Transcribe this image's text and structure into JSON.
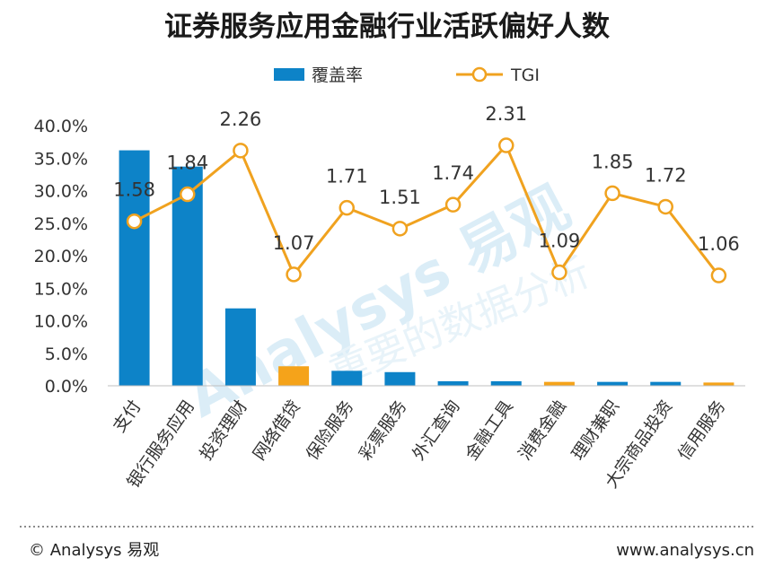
{
  "chart_data": {
    "type": "bar",
    "title": "证券服务应用金融行业活跃偏好人数",
    "categories": [
      "支付",
      "银行服务应用",
      "投资理财",
      "网络借贷",
      "保险服务",
      "彩票服务",
      "外汇查询",
      "金融工具",
      "消费金融",
      "理财兼职",
      "大宗商品投资",
      "信用服务"
    ],
    "series": [
      {
        "name": "覆盖率",
        "type": "bar",
        "values": [
          0.362,
          0.337,
          0.119,
          0.03,
          0.023,
          0.021,
          0.007,
          0.007,
          0.006,
          0.006,
          0.006,
          0.005
        ],
        "colors": [
          "#0d83c8",
          "#0d83c8",
          "#0d83c8",
          "#f5a31a",
          "#0d83c8",
          "#0d83c8",
          "#0d83c8",
          "#0d83c8",
          "#f5a31a",
          "#0d83c8",
          "#0d83c8",
          "#f5a31a"
        ]
      },
      {
        "name": "TGI",
        "type": "line",
        "values": [
          1.58,
          1.84,
          2.26,
          1.07,
          1.71,
          1.51,
          1.74,
          2.31,
          1.09,
          1.85,
          1.72,
          1.06
        ],
        "labels": [
          "1.58",
          "1.84",
          "2.26",
          "1.07",
          "1.71",
          "1.51",
          "1.74",
          "2.31",
          "1.09",
          "1.85",
          "1.72",
          "1.06"
        ],
        "color": "#f0a21f"
      }
    ],
    "y_axis": {
      "ylim": [
        0,
        0.4
      ],
      "ticks": [
        0,
        0.05,
        0.1,
        0.15,
        0.2,
        0.25,
        0.3,
        0.35,
        0.4
      ],
      "tick_labels": [
        "0.0%",
        "5.0%",
        "10.0%",
        "15.0%",
        "20.0%",
        "25.0%",
        "30.0%",
        "35.0%",
        "40.0%"
      ]
    },
    "tgi_axis": {
      "ylim": [
        0,
        2.5
      ]
    },
    "legend_position": "top-center",
    "grid": false
  },
  "colors": {
    "blue": "#0d83c8",
    "orange": "#f5a31a",
    "line": "#f0a21f"
  },
  "watermark": {
    "text1": "Analysys 易观",
    "text2": "重要的数据分析"
  },
  "footer": {
    "left": "© Analysys 易观",
    "right": "www.analysys.cn"
  }
}
